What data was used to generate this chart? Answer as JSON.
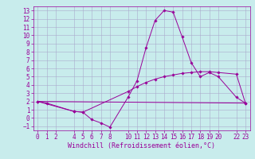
{
  "xlabel": "Windchill (Refroidissement éolien,°C)",
  "bg_color": "#c8ecec",
  "grid_color": "#aaaacc",
  "line_color": "#990099",
  "xlim": [
    -0.5,
    23.5
  ],
  "ylim": [
    -1.5,
    13.5
  ],
  "xticks": [
    0,
    1,
    2,
    4,
    5,
    6,
    7,
    8,
    10,
    11,
    12,
    13,
    14,
    15,
    16,
    17,
    18,
    19,
    20,
    22,
    23
  ],
  "yticks": [
    -1,
    0,
    1,
    2,
    3,
    4,
    5,
    6,
    7,
    8,
    9,
    10,
    11,
    12,
    13
  ],
  "series1_x": [
    0,
    1,
    4,
    5,
    6,
    7,
    8,
    10,
    11,
    12,
    13,
    14,
    15,
    16,
    17,
    18,
    19,
    20,
    22,
    23
  ],
  "series1_y": [
    2.0,
    1.8,
    0.8,
    0.7,
    -0.2,
    -0.6,
    -1.1,
    2.5,
    4.5,
    8.5,
    11.8,
    13.0,
    12.8,
    9.8,
    6.7,
    5.0,
    5.5,
    5.0,
    2.5,
    1.8
  ],
  "series2_x": [
    0,
    4,
    5,
    10,
    11,
    12,
    13,
    14,
    15,
    16,
    17,
    18,
    19,
    20,
    22,
    23
  ],
  "series2_y": [
    2.0,
    0.8,
    0.7,
    3.2,
    3.8,
    4.3,
    4.7,
    5.0,
    5.2,
    5.4,
    5.5,
    5.6,
    5.6,
    5.5,
    5.3,
    1.8
  ],
  "series3_x": [
    0,
    23
  ],
  "series3_y": [
    2.0,
    1.8
  ],
  "font_size_label": 6,
  "font_size_tick": 5.5,
  "marker_size": 1.8,
  "line_width": 0.7
}
